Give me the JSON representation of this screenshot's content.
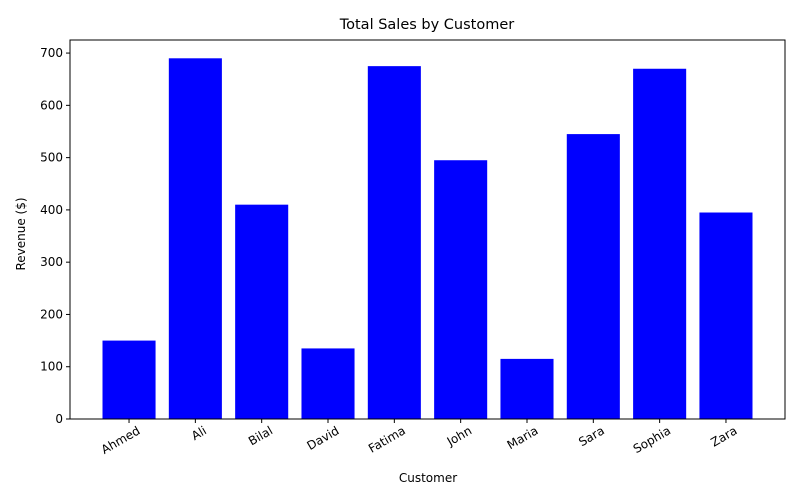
{
  "chart_data": {
    "type": "bar",
    "title": "Total Sales by Customer",
    "xlabel": "Customer",
    "ylabel": "Revenue ($)",
    "categories": [
      "Ahmed",
      "Ali",
      "Bilal",
      "David",
      "Fatima",
      "John",
      "Maria",
      "Sara",
      "Sophia",
      "Zara"
    ],
    "values": [
      150,
      690,
      410,
      135,
      675,
      495,
      115,
      545,
      670,
      395
    ],
    "ylim": [
      0,
      725
    ],
    "yticks": [
      0,
      100,
      200,
      300,
      400,
      500,
      600,
      700
    ],
    "bar_color": "#0000ff",
    "grid": false,
    "legend": "none"
  }
}
